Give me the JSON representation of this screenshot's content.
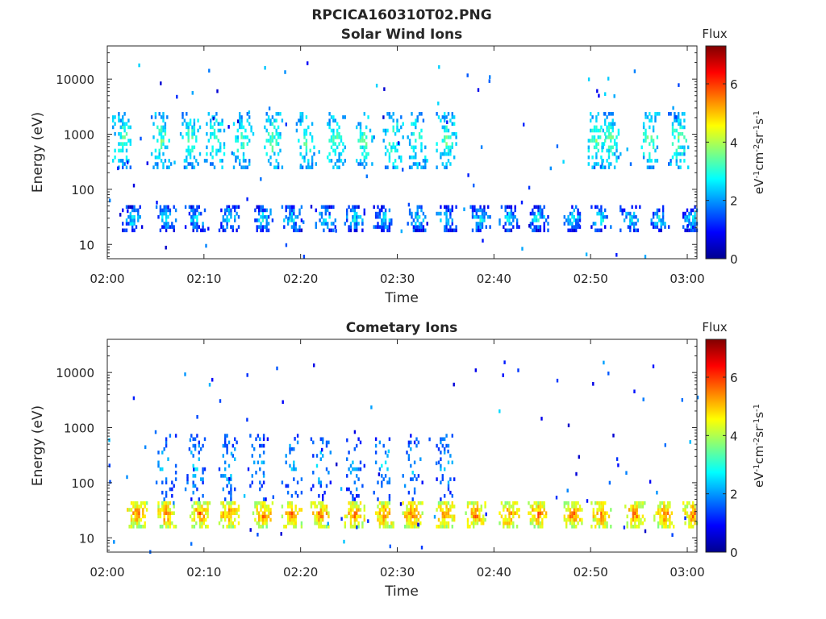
{
  "figure_title": "RPCICA160310T02.PNG",
  "chart_data": [
    {
      "type": "heatmap",
      "title": "Solar Wind Ions",
      "xlabel": "Time",
      "ylabel": "Energy (eV)",
      "y_scale": "log",
      "xlim": [
        "02:00",
        "03:01"
      ],
      "ylim": [
        5.5,
        40000
      ],
      "x_ticks": [
        "02:00",
        "02:10",
        "02:20",
        "02:30",
        "02:40",
        "02:50",
        "03:00"
      ],
      "y_ticks": [
        "10",
        "100",
        "1000",
        "10000"
      ],
      "colorbar": {
        "title": "Flux",
        "label": "eV-1cm-2sr-1s-1",
        "range": [
          0,
          7.3
        ],
        "ticks": [
          "0",
          "2",
          "4",
          "6"
        ],
        "colormap": "jet"
      },
      "grid": false,
      "bands": [
        {
          "energy_low": 18,
          "energy_high": 48,
          "flux_min": 0.5,
          "flux_max": 3.5,
          "density": 0.75,
          "bursts": [
            "02:02:30",
            "02:06:00",
            "02:09:00",
            "02:12:30",
            "02:16:00",
            "02:19:00",
            "02:22:30",
            "02:25:30",
            "02:28:30",
            "02:32:00",
            "02:35:00",
            "02:38:30",
            "02:41:30",
            "02:44:30",
            "02:48:00",
            "02:51:00",
            "02:54:00",
            "02:57:00",
            "03:00:30"
          ]
        },
        {
          "energy_low": 250,
          "energy_high": 2500,
          "flux_min": 1.5,
          "flux_max": 4.0,
          "density": 0.5,
          "bursts": [
            "02:01:30",
            "02:05:30",
            "02:08:30",
            "02:11:00",
            "02:14:00",
            "02:17:00",
            "02:20:30",
            "02:23:30",
            "02:26:30",
            "02:29:30",
            "02:32:00",
            "02:35:00",
            "02:50:30",
            "02:52:00",
            "02:56:00",
            "02:59:00"
          ]
        }
      ],
      "scatter_flux_range": [
        0.5,
        2.5
      ]
    },
    {
      "type": "heatmap",
      "title": "Cometary Ions",
      "xlabel": "Time",
      "ylabel": "Energy (eV)",
      "y_scale": "log",
      "xlim": [
        "02:00",
        "03:01"
      ],
      "ylim": [
        5.5,
        40000
      ],
      "x_ticks": [
        "02:00",
        "02:10",
        "02:20",
        "02:30",
        "02:40",
        "02:50",
        "03:00"
      ],
      "y_ticks": [
        "10",
        "100",
        "1000",
        "10000"
      ],
      "colorbar": {
        "title": "Flux",
        "label": "eV-1cm-2sr-1s-1",
        "range": [
          0,
          7.3
        ],
        "ticks": [
          "0",
          "2",
          "4",
          "6"
        ],
        "colormap": "jet"
      },
      "grid": false,
      "bands": [
        {
          "energy_low": 16,
          "energy_high": 45,
          "flux_min": 3.5,
          "flux_max": 6.2,
          "density": 0.95,
          "bursts": [
            "02:03:00",
            "02:06:00",
            "02:09:30",
            "02:12:30",
            "02:16:00",
            "02:19:00",
            "02:22:00",
            "02:25:30",
            "02:28:30",
            "02:31:30",
            "02:35:00",
            "02:38:00",
            "02:41:30",
            "02:44:30",
            "02:48:00",
            "02:51:00",
            "02:54:30",
            "02:57:30",
            "03:00:30"
          ]
        },
        {
          "energy_low": 50,
          "energy_high": 800,
          "flux_min": 0.8,
          "flux_max": 3.0,
          "density": 0.25,
          "bursts": [
            "02:06:00",
            "02:09:00",
            "02:12:30",
            "02:15:30",
            "02:19:00",
            "02:22:00",
            "02:25:30",
            "02:28:30",
            "02:31:30",
            "02:35:00"
          ]
        }
      ],
      "scatter_flux_range": [
        0.5,
        2.5
      ]
    }
  ]
}
